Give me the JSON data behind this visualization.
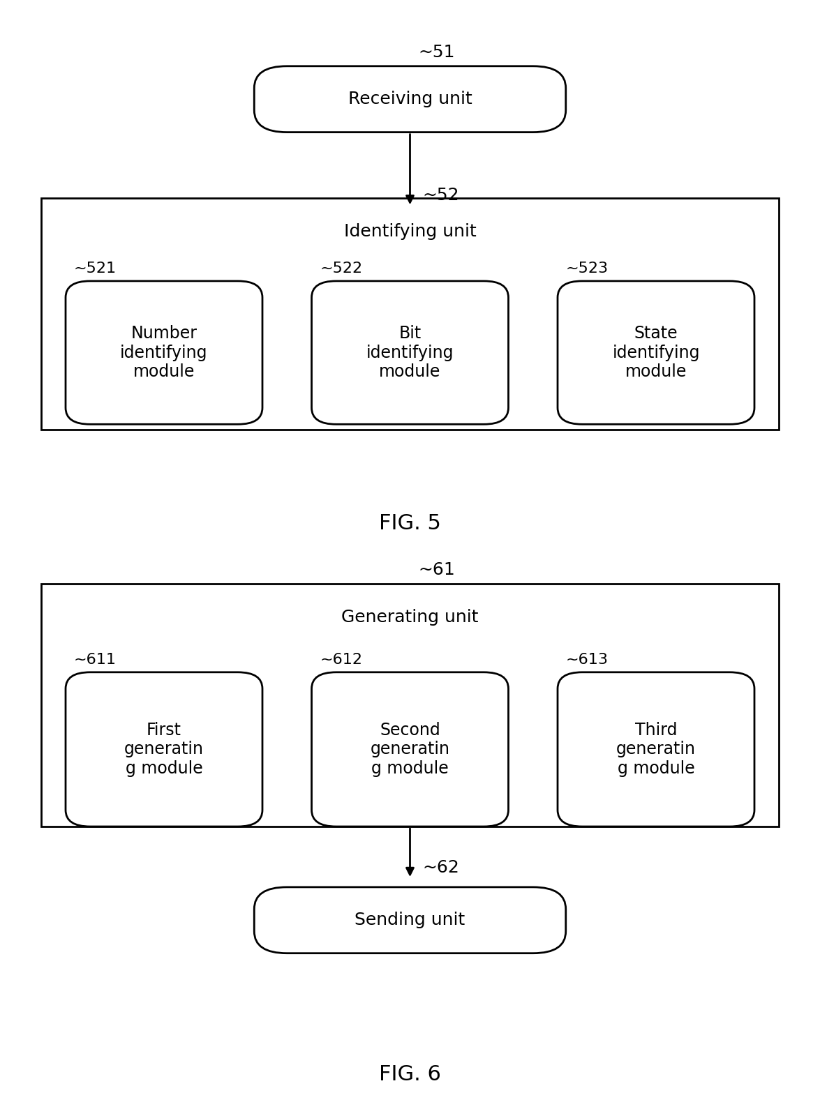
{
  "fig5": {
    "title": "FIG. 5",
    "receiving_unit": {
      "label": "Receiving unit",
      "ref": "51"
    },
    "identifying_unit": {
      "label": "Identifying unit",
      "ref": "52"
    },
    "modules": [
      {
        "label": "Number\nidentifying\nmodule",
        "ref": "521"
      },
      {
        "label": "Bit\nidentifying\nmodule",
        "ref": "522"
      },
      {
        "label": "State\nidentifying\nmodule",
        "ref": "523"
      }
    ]
  },
  "fig6": {
    "title": "FIG. 6",
    "generating_unit": {
      "label": "Generating unit",
      "ref": "61"
    },
    "sending_unit": {
      "label": "Sending unit",
      "ref": "62"
    },
    "modules": [
      {
        "label": "First\ngeneratin\ng module",
        "ref": "611"
      },
      {
        "label": "Second\ngeneratin\ng module",
        "ref": "612"
      },
      {
        "label": "Third\ngeneratin\ng module",
        "ref": "613"
      }
    ]
  },
  "bg_color": "#ffffff",
  "text_color": "#000000",
  "font_size_main": 18,
  "font_size_ref": 18,
  "font_size_title": 22,
  "font_size_module": 17
}
